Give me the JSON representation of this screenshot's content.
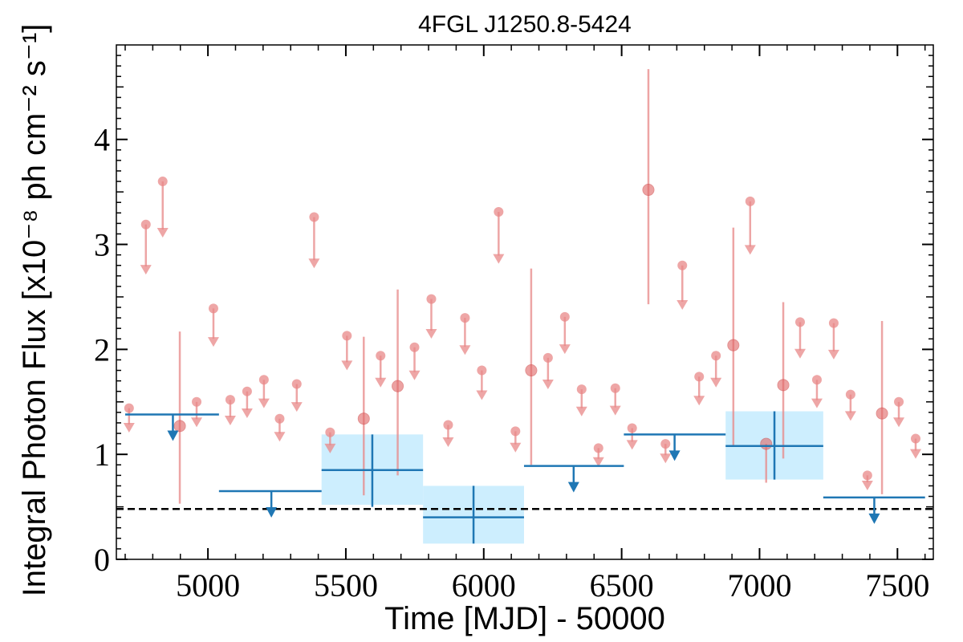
{
  "chart_data": {
    "type": "scatter",
    "title": "4FGL J1250.8-5424",
    "xlabel": "Time [MJD] - 50000",
    "ylabel": "Integral Photon Flux [x10⁻⁸ ph cm⁻² s⁻¹]",
    "xlim": [
      4668,
      7630
    ],
    "ylim": [
      0,
      4.9
    ],
    "xticks": [
      5000,
      5500,
      6000,
      6500,
      7000,
      7500
    ],
    "yticks": [
      0,
      1,
      2,
      3,
      4
    ],
    "grid": false,
    "reference_line": {
      "y": 0.48,
      "style": "dashed",
      "color": "#000000"
    },
    "colors": {
      "fine": "#e88888",
      "coarse": "#1f77b4",
      "band": "#cdeefe"
    },
    "fine_detections": [
      {
        "x": 4898,
        "y": 1.27,
        "ylo": 0.53,
        "yhi": 2.17
      },
      {
        "x": 5565,
        "y": 1.34,
        "ylo": 0.61,
        "yhi": 2.12
      },
      {
        "x": 5688,
        "y": 1.65,
        "ylo": 0.8,
        "yhi": 2.57
      },
      {
        "x": 6172,
        "y": 1.8,
        "ylo": 0.9,
        "yhi": 2.77
      },
      {
        "x": 6597,
        "y": 3.52,
        "ylo": 2.43,
        "yhi": 4.67
      },
      {
        "x": 6905,
        "y": 2.04,
        "ylo": 1.08,
        "yhi": 3.16
      },
      {
        "x": 7024,
        "y": 1.1,
        "ylo": 0.73,
        "yhi": 1.1
      },
      {
        "x": 7086,
        "y": 1.66,
        "ylo": 0.96,
        "yhi": 2.45
      },
      {
        "x": 7444,
        "y": 1.39,
        "ylo": 0.62,
        "yhi": 2.27
      }
    ],
    "fine_upper_limits": [
      {
        "x": 4714,
        "y": 1.44
      },
      {
        "x": 4775,
        "y": 3.19
      },
      {
        "x": 4836,
        "y": 3.6
      },
      {
        "x": 4959,
        "y": 1.5
      },
      {
        "x": 5020,
        "y": 2.39
      },
      {
        "x": 5081,
        "y": 1.52
      },
      {
        "x": 5142,
        "y": 1.6
      },
      {
        "x": 5203,
        "y": 1.71
      },
      {
        "x": 5260,
        "y": 1.34
      },
      {
        "x": 5322,
        "y": 1.67
      },
      {
        "x": 5385,
        "y": 3.26
      },
      {
        "x": 5443,
        "y": 1.21
      },
      {
        "x": 5504,
        "y": 2.13
      },
      {
        "x": 5626,
        "y": 1.94
      },
      {
        "x": 5749,
        "y": 2.02
      },
      {
        "x": 5810,
        "y": 2.48
      },
      {
        "x": 5871,
        "y": 1.28
      },
      {
        "x": 5932,
        "y": 2.3
      },
      {
        "x": 5993,
        "y": 1.8
      },
      {
        "x": 6054,
        "y": 3.31
      },
      {
        "x": 6115,
        "y": 1.22
      },
      {
        "x": 6233,
        "y": 1.92
      },
      {
        "x": 6294,
        "y": 2.31
      },
      {
        "x": 6355,
        "y": 1.62
      },
      {
        "x": 6416,
        "y": 1.06
      },
      {
        "x": 6477,
        "y": 1.63
      },
      {
        "x": 6538,
        "y": 1.25
      },
      {
        "x": 6659,
        "y": 1.1
      },
      {
        "x": 6720,
        "y": 2.8
      },
      {
        "x": 6781,
        "y": 1.74
      },
      {
        "x": 6842,
        "y": 1.94
      },
      {
        "x": 6966,
        "y": 3.41
      },
      {
        "x": 7147,
        "y": 2.26
      },
      {
        "x": 7208,
        "y": 1.71
      },
      {
        "x": 7269,
        "y": 2.25
      },
      {
        "x": 7330,
        "y": 1.57
      },
      {
        "x": 7391,
        "y": 0.8
      },
      {
        "x": 7505,
        "y": 1.5
      },
      {
        "x": 7566,
        "y": 1.15
      }
    ],
    "coarse_detections": [
      {
        "x0": 5412,
        "x1": 5780,
        "y": 0.85,
        "ylo": 0.5,
        "yhi": 1.19,
        "band_lo": 0.52,
        "band_hi": 1.19
      },
      {
        "x0": 5780,
        "x1": 6146,
        "y": 0.4,
        "ylo": 0.15,
        "yhi": 0.7,
        "band_lo": 0.15,
        "band_hi": 0.7
      },
      {
        "x0": 6877,
        "x1": 7231,
        "y": 1.08,
        "ylo": 0.76,
        "yhi": 1.41,
        "band_lo": 0.76,
        "band_hi": 1.41
      }
    ],
    "coarse_upper_limits": [
      {
        "x0": 4700,
        "x1": 5040,
        "y": 1.38,
        "xmid": 4873
      },
      {
        "x0": 5040,
        "x1": 5412,
        "y": 0.65,
        "xmid": 5230
      },
      {
        "x0": 6146,
        "x1": 6508,
        "y": 0.89,
        "xmid": 6326
      },
      {
        "x0": 6508,
        "x1": 6877,
        "y": 1.19,
        "xmid": 6692
      },
      {
        "x0": 7231,
        "x1": 7600,
        "y": 0.59,
        "xmid": 7416
      }
    ]
  }
}
